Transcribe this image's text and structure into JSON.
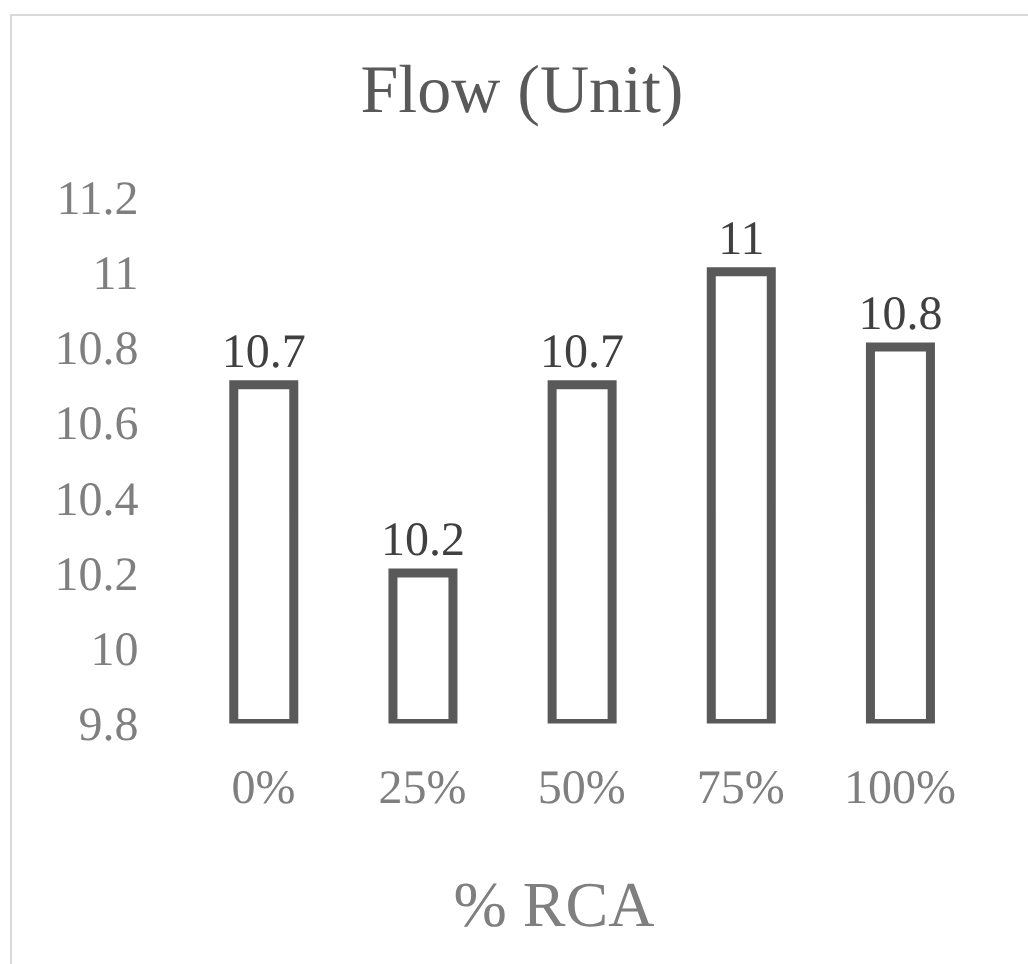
{
  "chart_data": {
    "type": "bar",
    "title": "Flow (Unit)",
    "xlabel": "% RCA",
    "categories": [
      "0%",
      "25%",
      "50%",
      "75%",
      "100%"
    ],
    "values": [
      10.7,
      10.2,
      10.7,
      11,
      10.8
    ],
    "color": "#595959",
    "ylim": [
      9.8,
      11.2
    ],
    "yticks": [
      9.8,
      10,
      10.2,
      10.4,
      10.6,
      10.8,
      11,
      11.2
    ],
    "data_labels": true
  }
}
